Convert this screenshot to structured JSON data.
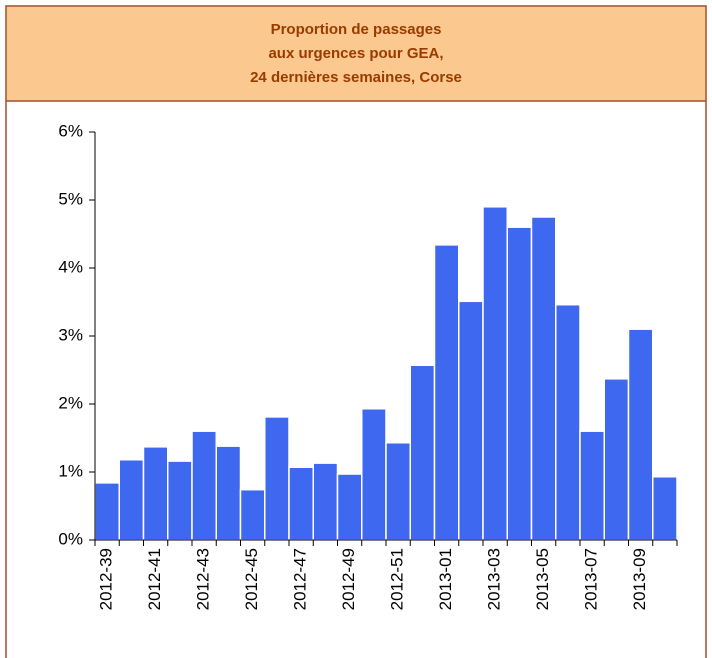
{
  "chart_data": {
    "type": "bar",
    "title": [
      "Proportion de passages",
      "aux urgences pour GEA,",
      "24 dernières semaines, Corse"
    ],
    "categories": [
      "2012-39",
      null,
      "2012-41",
      null,
      "2012-43",
      null,
      "2012-45",
      null,
      "2012-47",
      null,
      "2012-49",
      null,
      "2012-51",
      null,
      "2013-01",
      null,
      "2013-03",
      null,
      "2013-05",
      null,
      "2013-07",
      null,
      "2013-09",
      null
    ],
    "values": [
      0.84,
      1.18,
      1.37,
      1.16,
      1.6,
      1.38,
      0.74,
      1.81,
      1.07,
      1.13,
      0.97,
      1.93,
      1.43,
      2.57,
      4.34,
      3.51,
      4.9,
      4.6,
      4.75,
      3.46,
      1.6,
      2.37,
      3.1,
      0.93
    ],
    "color": "#3f68f0",
    "ylim": [
      0,
      6
    ],
    "yticks": [
      {
        "value": 0,
        "label": "0%"
      },
      {
        "value": 1,
        "label": "1%"
      },
      {
        "value": 2,
        "label": "2%"
      },
      {
        "value": 3,
        "label": "3%"
      },
      {
        "value": 4,
        "label": "4%"
      },
      {
        "value": 5,
        "label": "5%"
      },
      {
        "value": 6,
        "label": "6%"
      }
    ],
    "grid": false
  }
}
